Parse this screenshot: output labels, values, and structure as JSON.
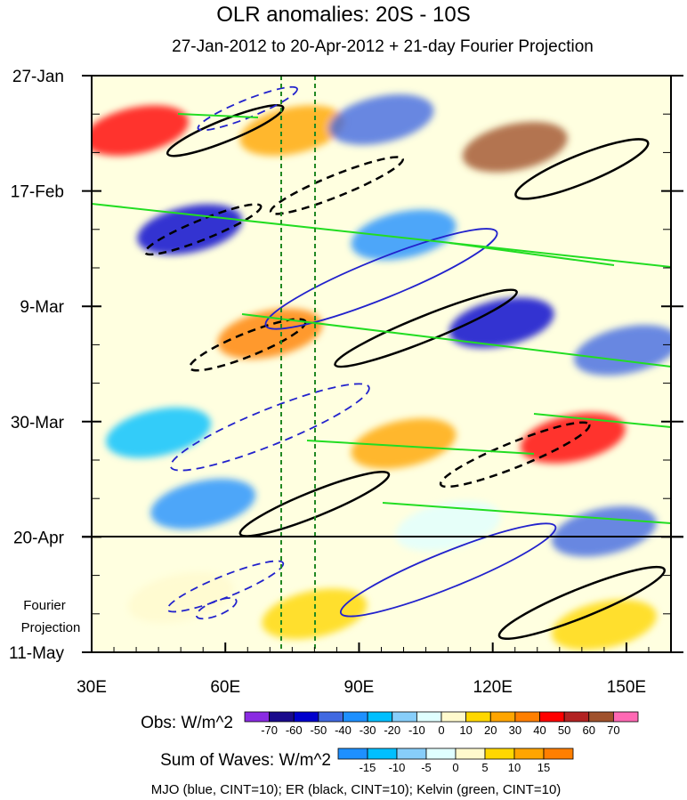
{
  "title": "OLR anomalies: 20S - 10S",
  "subtitle": "27-Jan-2012 to 20-Apr-2012 + 21-day Fourier Projection",
  "fourier_label": [
    "Fourier",
    "Projection"
  ],
  "footer": "MJO (blue, CINT=10); ER (black, CINT=10); Kelvin (green, CINT=10)",
  "colors": {
    "mjo": "#2222cc",
    "er": "#000000",
    "kelvin": "#22dd22",
    "ref_lines": "#228822"
  },
  "obs_colorbar": {
    "label": "Obs: W/m^2",
    "ticks": [
      "-70",
      "-60",
      "-50",
      "-40",
      "-30",
      "-20",
      "-10",
      "0",
      "10",
      "20",
      "30",
      "40",
      "50",
      "60",
      "70"
    ],
    "colors": [
      "#8a2be2",
      "#1a0a8c",
      "#0000cd",
      "#4169e1",
      "#1e90ff",
      "#00bfff",
      "#87cefa",
      "#e0ffff",
      "#fffacd",
      "#ffd700",
      "#ffa500",
      "#ff7f00",
      "#ff0000",
      "#b22222",
      "#a0522d",
      "#ff69b4"
    ]
  },
  "waves_colorbar": {
    "label": "Sum of Waves: W/m^2",
    "ticks": [
      "-15",
      "-10",
      "-5",
      "0",
      "5",
      "10",
      "15"
    ],
    "colors": [
      "#1e90ff",
      "#00bfff",
      "#87cefa",
      "#e0ffff",
      "#fffacd",
      "#ffd700",
      "#ffa500",
      "#ff7f00"
    ]
  },
  "chart_data": {
    "type": "heatmap",
    "title": "OLR anomalies: 20S - 10S",
    "subtitle": "27-Jan-2012 to 20-Apr-2012 + 21-day Fourier Projection",
    "x_axis": {
      "ticks": [
        "30E",
        "60E",
        "90E",
        "120E",
        "150E"
      ],
      "values": [
        30,
        60,
        90,
        120,
        150
      ],
      "range": [
        30,
        160
      ]
    },
    "y_axis": {
      "ticks": [
        "27-Jan",
        "17-Feb",
        "9-Mar",
        "30-Mar",
        "20-Apr",
        "11-May"
      ],
      "day_values": [
        0,
        21,
        42,
        63,
        84,
        105
      ],
      "range": [
        0,
        105
      ],
      "inverted": true
    },
    "projection_start": "20-Apr",
    "reference_longitudes": [
      72,
      80
    ],
    "contours": [
      {
        "name": "MJO",
        "color": "blue",
        "cint": 10
      },
      {
        "name": "ER",
        "color": "black",
        "cint": 10
      },
      {
        "name": "Kelvin",
        "color": "green",
        "cint": 10
      }
    ],
    "anomaly_field": [
      {
        "lon": 40,
        "day": 10,
        "value": 40
      },
      {
        "lon": 75,
        "day": 10,
        "value": 20
      },
      {
        "lon": 95,
        "day": 8,
        "value": -50
      },
      {
        "lon": 125,
        "day": 13,
        "value": 60
      },
      {
        "lon": 52,
        "day": 28,
        "value": -60
      },
      {
        "lon": 100,
        "day": 29,
        "value": -40
      },
      {
        "lon": 70,
        "day": 47,
        "value": 30
      },
      {
        "lon": 122,
        "day": 45,
        "value": -60
      },
      {
        "lon": 150,
        "day": 50,
        "value": -50
      },
      {
        "lon": 45,
        "day": 65,
        "value": -30
      },
      {
        "lon": 100,
        "day": 67,
        "value": 20
      },
      {
        "lon": 138,
        "day": 66,
        "value": 40
      },
      {
        "lon": 55,
        "day": 78,
        "value": -40
      },
      {
        "lon": 110,
        "day": 82,
        "value": -10
      },
      {
        "lon": 145,
        "day": 83,
        "value": -50
      },
      {
        "lon": 50,
        "day": 95,
        "value": 5
      },
      {
        "lon": 80,
        "day": 98,
        "value": 10
      },
      {
        "lon": 145,
        "day": 100,
        "value": 10
      }
    ]
  }
}
